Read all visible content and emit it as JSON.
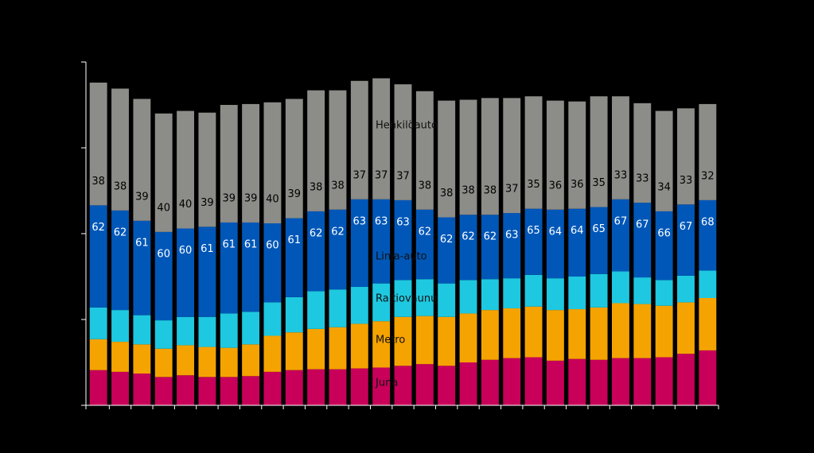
{
  "chart_data": {
    "type": "stacked_bar",
    "ylim": [
      0,
      400
    ],
    "yticks": [
      0,
      100,
      200,
      300,
      400
    ],
    "series": [
      {
        "name": "Juna",
        "color": "#c8005a",
        "values": [
          41,
          39,
          37,
          33,
          35,
          33,
          33,
          34,
          39,
          41,
          42,
          42,
          43,
          44,
          46,
          48,
          46,
          50,
          53,
          55,
          56,
          52,
          54,
          53,
          55,
          55,
          56,
          60,
          64
        ]
      },
      {
        "name": "Metro",
        "color": "#f5a300",
        "values": [
          36,
          35,
          34,
          33,
          35,
          35,
          34,
          37,
          42,
          44,
          47,
          49,
          52,
          54,
          57,
          56,
          57,
          57,
          58,
          58,
          59,
          59,
          58,
          61,
          64,
          63,
          60,
          60,
          61
        ]
      },
      {
        "name": "Raitiovaunu",
        "color": "#1ec8e0",
        "values": [
          37,
          37,
          34,
          33,
          33,
          35,
          40,
          38,
          39,
          41,
          44,
          44,
          43,
          44,
          43,
          43,
          39,
          39,
          36,
          35,
          37,
          37,
          38,
          39,
          37,
          31,
          30,
          31,
          32
        ]
      },
      {
        "name": "Linja-auto",
        "color": "#0057b8",
        "values": [
          119,
          116,
          110,
          103,
          103,
          105,
          106,
          104,
          92,
          92,
          93,
          93,
          102,
          98,
          93,
          81,
          77,
          76,
          75,
          76,
          77,
          80,
          79,
          78,
          84,
          87,
          80,
          83,
          82
        ]
      },
      {
        "name": "Henkilöauto",
        "color": "#8c8c88",
        "values": [
          143,
          142,
          142,
          138,
          137,
          133,
          137,
          138,
          141,
          139,
          141,
          139,
          138,
          141,
          135,
          138,
          136,
          134,
          136,
          134,
          131,
          127,
          125,
          129,
          120,
          116,
          117,
          112,
          112
        ]
      }
    ],
    "public_share": [
      62,
      62,
      61,
      60,
      60,
      61,
      61,
      61,
      60,
      61,
      62,
      62,
      63,
      63,
      63,
      62,
      62,
      62,
      62,
      63,
      65,
      64,
      64,
      65,
      67,
      67,
      66,
      67,
      68
    ],
    "car_share": [
      38,
      38,
      39,
      40,
      40,
      39,
      39,
      39,
      40,
      39,
      38,
      38,
      37,
      37,
      37,
      38,
      38,
      38,
      38,
      37,
      35,
      36,
      36,
      35,
      33,
      33,
      34,
      33,
      32
    ]
  }
}
